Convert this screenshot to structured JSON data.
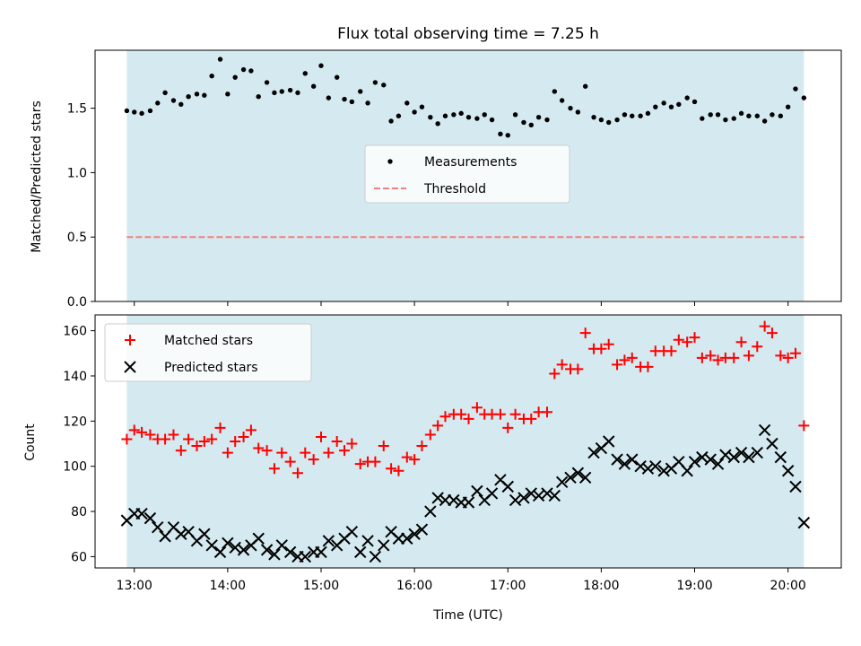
{
  "chart_data": [
    {
      "type": "scatter",
      "title": "Flux total observing time = 7.25 h",
      "ylabel": "Matched/Predicted stars",
      "xlabel": "",
      "x_unit": "hours (UTC)",
      "xlim": [
        12.58,
        20.57
      ],
      "ylim": [
        0,
        1.95
      ],
      "yticks": [
        0.0,
        0.5,
        1.0,
        1.5
      ],
      "ytick_labels": [
        "0.0",
        "0.5",
        "1.0",
        "1.5"
      ],
      "xticks": [
        13,
        14,
        15,
        16,
        17,
        18,
        19,
        20
      ],
      "observing_span": [
        12.92,
        20.17
      ],
      "span_color": "#d4eaf0",
      "legend_position": "center",
      "series": [
        {
          "name": "Measurements",
          "marker": "dot",
          "color": "#000000",
          "x": [
            12.92,
            13.0,
            13.08,
            13.17,
            13.25,
            13.33,
            13.42,
            13.5,
            13.58,
            13.67,
            13.75,
            13.83,
            13.92,
            14.0,
            14.08,
            14.17,
            14.25,
            14.33,
            14.42,
            14.5,
            14.58,
            14.67,
            14.75,
            14.83,
            14.92,
            15.0,
            15.08,
            15.17,
            15.25,
            15.33,
            15.42,
            15.5,
            15.58,
            15.67,
            15.75,
            15.83,
            15.92,
            16.0,
            16.08,
            16.17,
            16.25,
            16.33,
            16.42,
            16.5,
            16.58,
            16.67,
            16.75,
            16.83,
            16.92,
            17.0,
            17.08,
            17.17,
            17.25,
            17.33,
            17.42,
            17.5,
            17.58,
            17.67,
            17.75,
            17.83,
            17.92,
            18.0,
            18.08,
            18.17,
            18.25,
            18.33,
            18.42,
            18.5,
            18.58,
            18.67,
            18.75,
            18.83,
            18.92,
            19.0,
            19.08,
            19.17,
            19.25,
            19.33,
            19.42,
            19.5,
            19.58,
            19.67,
            19.75,
            19.83,
            19.92,
            20.0,
            20.08,
            20.17
          ],
          "y": [
            1.48,
            1.47,
            1.46,
            1.48,
            1.54,
            1.62,
            1.56,
            1.53,
            1.59,
            1.61,
            1.6,
            1.75,
            1.88,
            1.61,
            1.74,
            1.8,
            1.79,
            1.59,
            1.7,
            1.62,
            1.63,
            1.64,
            1.62,
            1.77,
            1.67,
            1.83,
            1.58,
            1.74,
            1.57,
            1.55,
            1.63,
            1.54,
            1.7,
            1.68,
            1.4,
            1.44,
            1.54,
            1.47,
            1.51,
            1.43,
            1.38,
            1.44,
            1.45,
            1.46,
            1.43,
            1.42,
            1.45,
            1.41,
            1.3,
            1.29,
            1.45,
            1.39,
            1.37,
            1.43,
            1.41,
            1.63,
            1.56,
            1.5,
            1.47,
            1.67,
            1.43,
            1.41,
            1.39,
            1.41,
            1.45,
            1.44,
            1.44,
            1.46,
            1.51,
            1.54,
            1.51,
            1.53,
            1.58,
            1.55,
            1.42,
            1.45,
            1.45,
            1.41,
            1.42,
            1.46,
            1.44,
            1.44,
            1.4,
            1.45,
            1.44,
            1.51,
            1.65,
            1.58
          ]
        },
        {
          "name": "Threshold",
          "marker": "dashed-line",
          "color": "#f08080",
          "x": [
            12.92,
            20.17
          ],
          "y": [
            0.5,
            0.5
          ]
        }
      ]
    },
    {
      "type": "scatter",
      "title": "",
      "ylabel": "Count",
      "xlabel": "Time (UTC)",
      "x_unit": "hours (UTC)",
      "xlim": [
        12.58,
        20.57
      ],
      "ylim": [
        55,
        167
      ],
      "yticks": [
        60,
        80,
        100,
        120,
        140,
        160
      ],
      "ytick_labels": [
        "60",
        "80",
        "100",
        "120",
        "140",
        "160"
      ],
      "xticks": [
        13,
        14,
        15,
        16,
        17,
        18,
        19,
        20
      ],
      "xtick_labels": [
        "13:00",
        "14:00",
        "15:00",
        "16:00",
        "17:00",
        "18:00",
        "19:00",
        "20:00"
      ],
      "observing_span": [
        12.92,
        20.17
      ],
      "span_color": "#d4eaf0",
      "legend_position": "top-left",
      "series": [
        {
          "name": "Matched stars",
          "marker": "plus",
          "color": "#ff0000",
          "x": [
            12.92,
            13.0,
            13.08,
            13.17,
            13.25,
            13.33,
            13.42,
            13.5,
            13.58,
            13.67,
            13.75,
            13.83,
            13.92,
            14.0,
            14.08,
            14.17,
            14.25,
            14.33,
            14.42,
            14.5,
            14.58,
            14.67,
            14.75,
            14.83,
            14.92,
            15.0,
            15.08,
            15.17,
            15.25,
            15.33,
            15.42,
            15.5,
            15.58,
            15.67,
            15.75,
            15.83,
            15.92,
            16.0,
            16.08,
            16.17,
            16.25,
            16.33,
            16.42,
            16.5,
            16.58,
            16.67,
            16.75,
            16.83,
            16.92,
            17.0,
            17.08,
            17.17,
            17.25,
            17.33,
            17.42,
            17.5,
            17.58,
            17.67,
            17.75,
            17.83,
            17.92,
            18.0,
            18.08,
            18.17,
            18.25,
            18.33,
            18.42,
            18.5,
            18.58,
            18.67,
            18.75,
            18.83,
            18.92,
            19.0,
            19.08,
            19.17,
            19.25,
            19.33,
            19.42,
            19.5,
            19.58,
            19.67,
            19.75,
            19.83,
            19.92,
            20.0,
            20.08,
            20.17
          ],
          "y": [
            112,
            116,
            115,
            114,
            112,
            112,
            114,
            107,
            112,
            109,
            111,
            112,
            117,
            106,
            111,
            113,
            116,
            108,
            107,
            99,
            106,
            102,
            97,
            106,
            103,
            113,
            106,
            111,
            107,
            110,
            101,
            102,
            102,
            109,
            99,
            98,
            104,
            103,
            109,
            114,
            118,
            122,
            123,
            123,
            121,
            126,
            123,
            123,
            123,
            117,
            123,
            121,
            121,
            124,
            124,
            141,
            145,
            143,
            143,
            159,
            152,
            152,
            154,
            145,
            147,
            148,
            144,
            144,
            151,
            151,
            151,
            156,
            155,
            157,
            148,
            149,
            147,
            148,
            148,
            155,
            149,
            153,
            162,
            159,
            149,
            148,
            150,
            118
          ]
        },
        {
          "name": "Predicted stars",
          "marker": "x",
          "color": "#000000",
          "x": [
            12.92,
            13.0,
            13.08,
            13.17,
            13.25,
            13.33,
            13.42,
            13.5,
            13.58,
            13.67,
            13.75,
            13.83,
            13.92,
            14.0,
            14.08,
            14.17,
            14.25,
            14.33,
            14.42,
            14.5,
            14.58,
            14.67,
            14.75,
            14.83,
            14.92,
            15.0,
            15.08,
            15.17,
            15.25,
            15.33,
            15.42,
            15.5,
            15.58,
            15.67,
            15.75,
            15.83,
            15.92,
            16.0,
            16.08,
            16.17,
            16.25,
            16.33,
            16.42,
            16.5,
            16.58,
            16.67,
            16.75,
            16.83,
            16.92,
            17.0,
            17.08,
            17.17,
            17.25,
            17.33,
            17.42,
            17.5,
            17.58,
            17.67,
            17.75,
            17.83,
            17.92,
            18.0,
            18.08,
            18.17,
            18.25,
            18.33,
            18.42,
            18.5,
            18.58,
            18.67,
            18.75,
            18.83,
            18.92,
            19.0,
            19.08,
            19.17,
            19.25,
            19.33,
            19.42,
            19.5,
            19.58,
            19.67,
            19.75,
            19.83,
            19.92,
            20.0,
            20.08,
            20.17
          ],
          "y": [
            76,
            79,
            79,
            77,
            73,
            69,
            73,
            70,
            71,
            67,
            70,
            65,
            62,
            66,
            64,
            63,
            65,
            68,
            63,
            61,
            65,
            62,
            60,
            60,
            62,
            62,
            67,
            65,
            68,
            71,
            62,
            67,
            60,
            65,
            71,
            68,
            68,
            70,
            72,
            80,
            86,
            85,
            85,
            84,
            84,
            89,
            85,
            88,
            94,
            91,
            85,
            86,
            88,
            87,
            88,
            87,
            93,
            95,
            97,
            95,
            106,
            108,
            111,
            103,
            101,
            103,
            100,
            99,
            100,
            98,
            99,
            102,
            98,
            102,
            104,
            103,
            101,
            105,
            104,
            106,
            104,
            106,
            116,
            110,
            104,
            98,
            91,
            75
          ]
        }
      ]
    }
  ]
}
